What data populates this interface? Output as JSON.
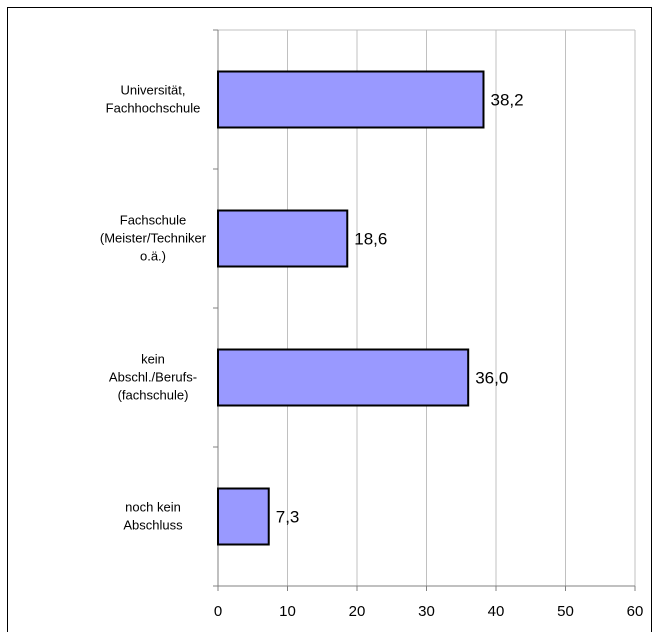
{
  "chart_data": {
    "type": "bar",
    "orientation": "horizontal",
    "categories": [
      [
        "Universität,",
        "Fachhochschule"
      ],
      [
        "Fachschule",
        "(Meister/Techniker",
        "o.ä.)"
      ],
      [
        "kein",
        "Abschl./Berufs-",
        "(fachschule)"
      ],
      [
        "noch kein",
        "Abschluss"
      ]
    ],
    "values": [
      38.2,
      18.6,
      36.0,
      7.3
    ],
    "value_labels": [
      "38,2",
      "18,6",
      "36,0",
      "7,3"
    ],
    "xlim": [
      0,
      60
    ],
    "x_ticks": [
      0,
      10,
      20,
      30,
      40,
      50,
      60
    ],
    "x_tick_labels": [
      "0",
      "10",
      "20",
      "30",
      "40",
      "50",
      "60"
    ],
    "grid": "vertical",
    "legend": "none",
    "title": "",
    "xlabel": "",
    "ylabel": "",
    "colors": {
      "bar_fill": "#9999ff",
      "bar_stroke": "#000000",
      "grid": "#c0c0c0",
      "axis": "#808080",
      "text": "#000000"
    }
  }
}
